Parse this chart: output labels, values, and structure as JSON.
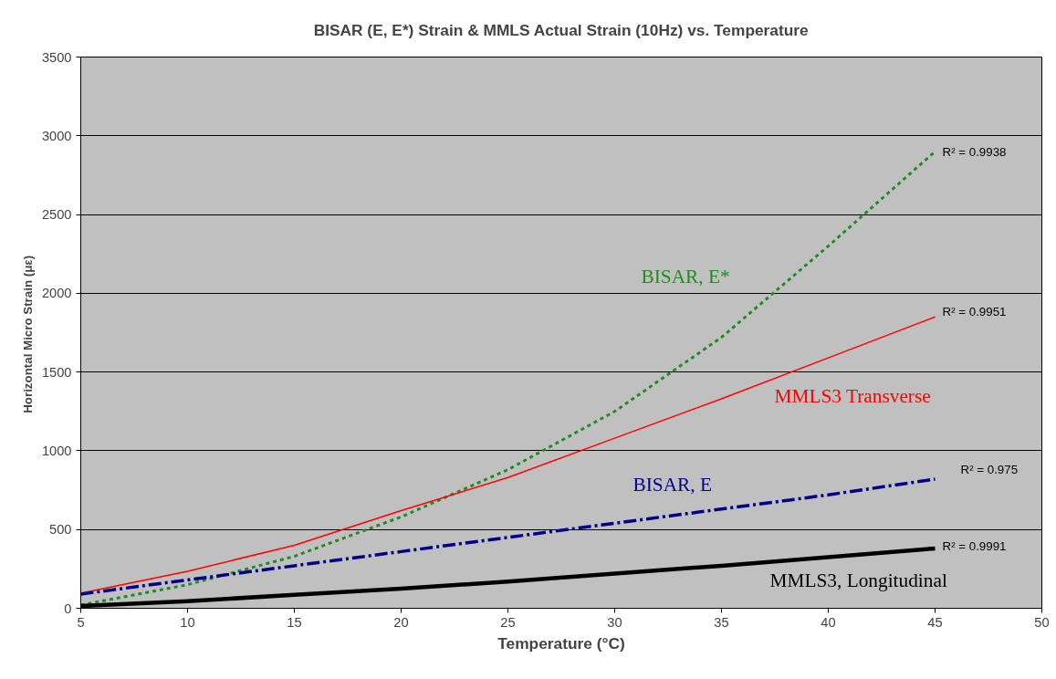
{
  "chart_data": {
    "type": "line",
    "title": "BISAR (E, E*) Strain & MMLS Actual Strain (10Hz) vs. Temperature",
    "xlabel": "Temperature (°C)",
    "ylabel": "Horizontal Micro Strain  (με)",
    "x": [
      5,
      10,
      15,
      20,
      25,
      30,
      35,
      40,
      45
    ],
    "series": [
      {
        "name": "BISAR, E*",
        "color": "#228b22",
        "line_style": "dotted",
        "values": [
          20,
          150,
          330,
          580,
          880,
          1250,
          1720,
          2300,
          2900
        ]
      },
      {
        "name": "MMLS3 Transverse",
        "color": "#ff0000",
        "line_style": "solid",
        "values": [
          95,
          235,
          400,
          620,
          830,
          1080,
          1330,
          1590,
          1850
        ]
      },
      {
        "name": "BISAR, E",
        "color": "#00008b",
        "line_style": "dashed",
        "values": [
          90,
          180,
          270,
          360,
          450,
          540,
          630,
          720,
          820
        ]
      },
      {
        "name": "MMLS3, Longitudinal",
        "color": "#000000",
        "line_style": "solid",
        "values": [
          15,
          45,
          85,
          125,
          170,
          220,
          270,
          325,
          380
        ]
      }
    ],
    "annotations": [
      "R² = 0.9938",
      "R² = 0.9951",
      "R² = 0.975",
      "R² = 0.9991"
    ],
    "xlim": [
      5,
      50
    ],
    "xticks": [
      5,
      10,
      15,
      20,
      25,
      30,
      35,
      40,
      45,
      50
    ],
    "ylim": [
      0,
      3500
    ],
    "yticks": [
      0,
      500,
      1000,
      1500,
      2000,
      2500,
      3000,
      3500
    ],
    "grid": "y",
    "legend": false
  }
}
